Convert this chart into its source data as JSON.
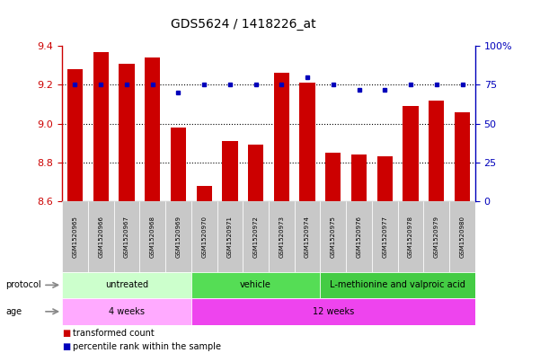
{
  "title": "GDS5624 / 1418226_at",
  "samples": [
    "GSM1520965",
    "GSM1520966",
    "GSM1520967",
    "GSM1520968",
    "GSM1520969",
    "GSM1520970",
    "GSM1520971",
    "GSM1520972",
    "GSM1520973",
    "GSM1520974",
    "GSM1520975",
    "GSM1520976",
    "GSM1520977",
    "GSM1520978",
    "GSM1520979",
    "GSM1520980"
  ],
  "transformed_count": [
    9.28,
    9.37,
    9.31,
    9.34,
    8.98,
    8.68,
    8.91,
    8.89,
    9.26,
    9.21,
    8.85,
    8.84,
    8.83,
    9.09,
    9.12,
    9.06
  ],
  "percentile_rank": [
    75,
    75,
    75,
    75,
    70,
    75,
    75,
    75,
    75,
    80,
    75,
    72,
    72,
    75,
    75,
    75
  ],
  "y_min": 8.6,
  "y_max": 9.4,
  "y_ticks": [
    8.6,
    8.8,
    9.0,
    9.2,
    9.4
  ],
  "right_y_ticks": [
    0,
    25,
    50,
    75,
    100
  ],
  "right_y_tick_labels": [
    "0",
    "25",
    "50",
    "75",
    "100%"
  ],
  "bar_color": "#cc0000",
  "dot_color": "#0000bb",
  "protocol_groups": [
    {
      "label": "untreated",
      "start": 0,
      "end": 5,
      "color": "#ccffcc"
    },
    {
      "label": "vehicle",
      "start": 5,
      "end": 10,
      "color": "#55dd55"
    },
    {
      "label": "L-methionine and valproic acid",
      "start": 10,
      "end": 16,
      "color": "#44cc44"
    }
  ],
  "age_groups": [
    {
      "label": "4 weeks",
      "start": 0,
      "end": 5,
      "color": "#ffaaff"
    },
    {
      "label": "12 weeks",
      "start": 5,
      "end": 16,
      "color": "#ee44ee"
    }
  ],
  "protocol_label": "protocol",
  "age_label": "age",
  "legend_bar_label": "transformed count",
  "legend_dot_label": "percentile rank within the sample",
  "bg_color": "#ffffff",
  "plot_bg_color": "#ffffff",
  "tick_color_left": "#cc0000",
  "tick_color_right": "#0000bb",
  "sample_bg_color": "#bbbbbb",
  "gridline_colors": [
    8.8,
    9.0,
    9.2
  ]
}
